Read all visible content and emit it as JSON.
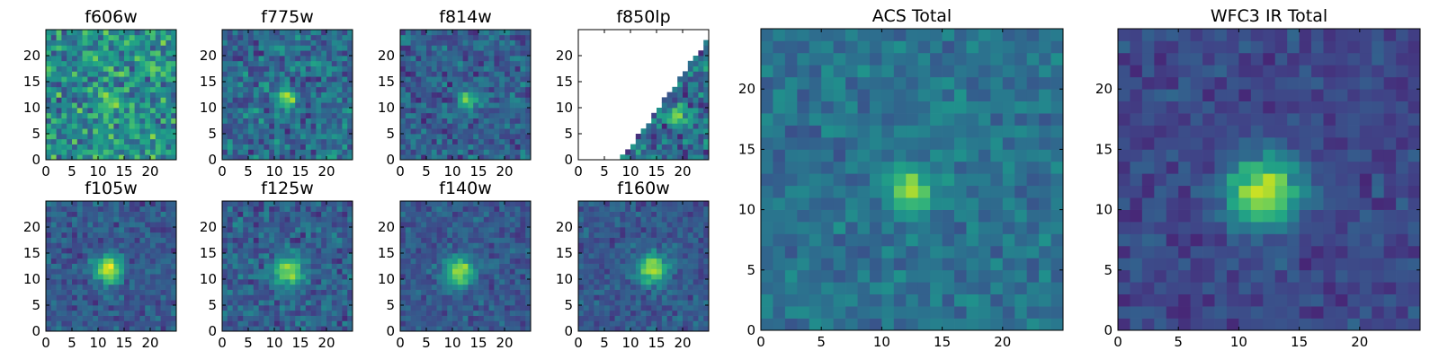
{
  "chart_data": {
    "type": "heatmap",
    "colormap": "viridis",
    "panels": [
      {
        "id": "f606w",
        "title": "f606w",
        "xlim": [
          0,
          25
        ],
        "ylim": [
          0,
          25
        ],
        "xticks": [
          0,
          5,
          10,
          15,
          20
        ],
        "yticks": [
          0,
          5,
          10,
          15,
          20
        ],
        "peak": [
          12.5,
          11.5
        ],
        "sigma": 1.2,
        "peak_amp": 0.35,
        "bg": 0.5,
        "noise": 0.34,
        "mask": "none"
      },
      {
        "id": "f775w",
        "title": "f775w",
        "xlim": [
          0,
          25
        ],
        "ylim": [
          0,
          25
        ],
        "xticks": [
          0,
          5,
          10,
          15,
          20
        ],
        "yticks": [
          0,
          5,
          10,
          15,
          20
        ],
        "peak": [
          12.5,
          12
        ],
        "sigma": 1.2,
        "peak_amp": 0.55,
        "bg": 0.35,
        "noise": 0.26,
        "mask": "none"
      },
      {
        "id": "f814w",
        "title": "f814w",
        "xlim": [
          0,
          25
        ],
        "ylim": [
          0,
          25
        ],
        "xticks": [
          0,
          5,
          10,
          15,
          20
        ],
        "yticks": [
          0,
          5,
          10,
          15,
          20
        ],
        "peak": [
          13,
          11.5
        ],
        "sigma": 1.2,
        "peak_amp": 0.55,
        "bg": 0.3,
        "noise": 0.22,
        "mask": "none"
      },
      {
        "id": "f850lp",
        "title": "f850lp",
        "xlim": [
          0,
          25
        ],
        "ylim": [
          0,
          25
        ],
        "xticks": [
          0,
          5,
          10,
          15,
          20
        ],
        "yticks": [
          0,
          5,
          10,
          15,
          20
        ],
        "peak": [
          19,
          8.5
        ],
        "sigma": 1.2,
        "peak_amp": 0.45,
        "bg": 0.35,
        "noise": 0.3,
        "mask": "diagonal"
      },
      {
        "id": "f105w",
        "title": "f105w",
        "xlim": [
          0,
          25
        ],
        "ylim": [
          0,
          25
        ],
        "xticks": [
          0,
          5,
          10,
          15,
          20
        ],
        "yticks": [
          0,
          5,
          10,
          15,
          20
        ],
        "peak": [
          12,
          12
        ],
        "sigma": 1.8,
        "peak_amp": 0.7,
        "bg": 0.28,
        "noise": 0.17,
        "mask": "none"
      },
      {
        "id": "f125w",
        "title": "f125w",
        "xlim": [
          0,
          25
        ],
        "ylim": [
          0,
          25
        ],
        "xticks": [
          0,
          5,
          10,
          15,
          20
        ],
        "yticks": [
          0,
          5,
          10,
          15,
          20
        ],
        "peak": [
          13,
          11.5
        ],
        "sigma": 2.0,
        "peak_amp": 0.6,
        "bg": 0.3,
        "noise": 0.2,
        "mask": "none"
      },
      {
        "id": "f140w",
        "title": "f140w",
        "xlim": [
          0,
          25
        ],
        "ylim": [
          0,
          25
        ],
        "xticks": [
          0,
          5,
          10,
          15,
          20
        ],
        "yticks": [
          0,
          5,
          10,
          15,
          20
        ],
        "peak": [
          11.5,
          11.5
        ],
        "sigma": 2.0,
        "peak_amp": 0.6,
        "bg": 0.28,
        "noise": 0.15,
        "mask": "none"
      },
      {
        "id": "f160w",
        "title": "f160w",
        "xlim": [
          0,
          25
        ],
        "ylim": [
          0,
          25
        ],
        "xticks": [
          0,
          5,
          10,
          15,
          20
        ],
        "yticks": [
          0,
          5,
          10,
          15,
          20
        ],
        "peak": [
          14,
          12
        ],
        "sigma": 2.0,
        "peak_amp": 0.6,
        "bg": 0.28,
        "noise": 0.15,
        "mask": "none"
      },
      {
        "id": "acs-total",
        "title": "ACS Total",
        "xlim": [
          0,
          25
        ],
        "ylim": [
          0,
          25
        ],
        "xticks": [
          0,
          5,
          10,
          15,
          20
        ],
        "yticks": [
          0,
          5,
          10,
          15,
          20
        ],
        "peak": [
          12.5,
          11.5
        ],
        "sigma": 1.3,
        "peak_amp": 0.55,
        "bg": 0.38,
        "noise": 0.15,
        "mask": "none"
      },
      {
        "id": "wfc3-ir-total",
        "title": "WFC3 IR Total",
        "xlim": [
          0,
          25
        ],
        "ylim": [
          0,
          25
        ],
        "xticks": [
          0,
          5,
          10,
          15,
          20
        ],
        "yticks": [
          0,
          5,
          10,
          15,
          20
        ],
        "peak": [
          12,
          11.5
        ],
        "sigma": 2.0,
        "peak_amp": 0.72,
        "bg": 0.22,
        "noise": 0.12,
        "mask": "none"
      }
    ]
  }
}
